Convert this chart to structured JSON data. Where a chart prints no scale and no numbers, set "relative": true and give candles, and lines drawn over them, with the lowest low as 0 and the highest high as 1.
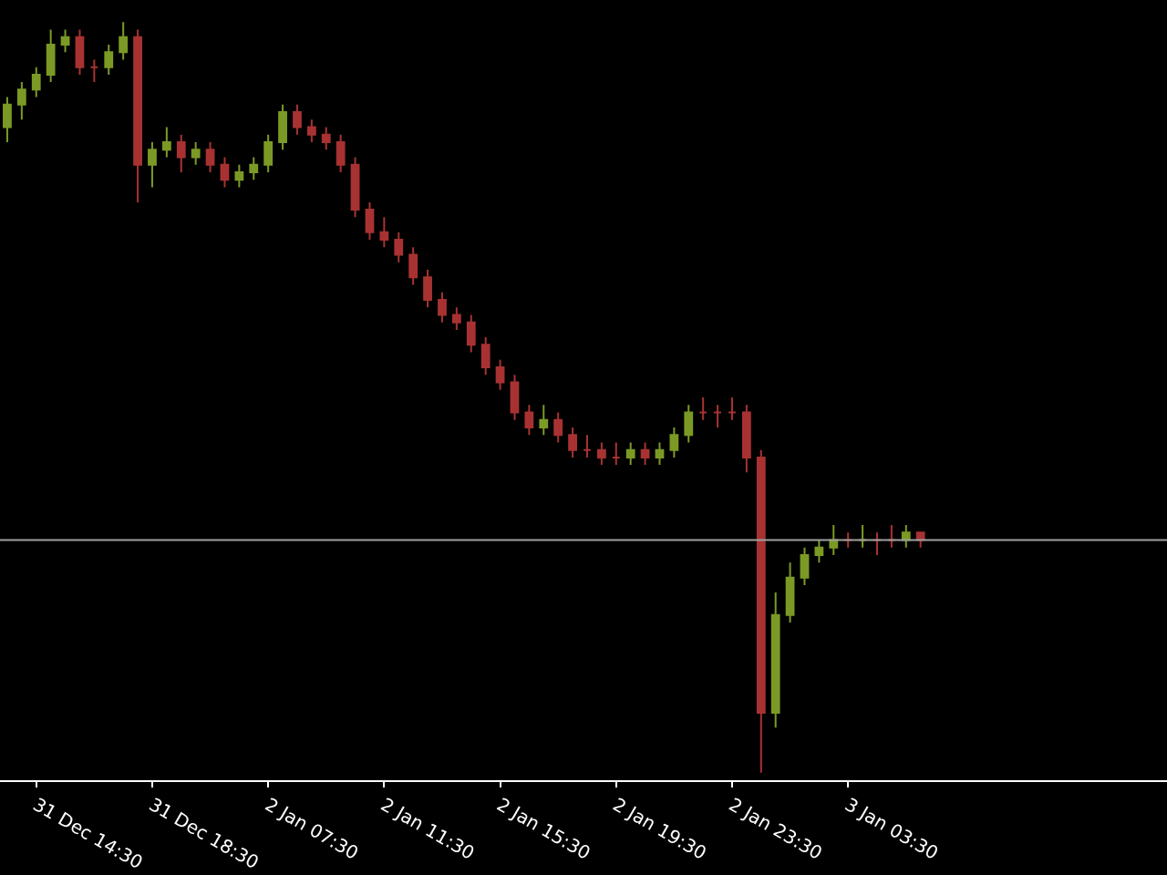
{
  "chart_data": {
    "type": "candlestick",
    "relative": true,
    "grid": false,
    "categories": [
      null,
      null,
      "31 Dec 14:30",
      null,
      null,
      null,
      null,
      null,
      null,
      null,
      "31 Dec 18:30",
      null,
      null,
      null,
      null,
      null,
      null,
      null,
      "2 Jan 07:30",
      null,
      null,
      null,
      null,
      null,
      null,
      null,
      "2 Jan 11:30",
      null,
      null,
      null,
      null,
      null,
      null,
      null,
      "2 Jan 15:30",
      null,
      null,
      null,
      null,
      null,
      null,
      null,
      "2 Jan 19:30",
      null,
      null,
      null,
      null,
      null,
      null,
      null,
      "2 Jan 23:30",
      null,
      null,
      null,
      null,
      null,
      null,
      null,
      "3 Jan 03:30",
      null,
      null,
      null,
      null,
      null
    ],
    "ohlc": [
      [
        0.86,
        0.9,
        0.84,
        0.89
      ],
      [
        0.89,
        0.92,
        0.87,
        0.91
      ],
      [
        0.91,
        0.94,
        0.9,
        0.93
      ],
      [
        0.93,
        0.99,
        0.92,
        0.97
      ],
      [
        0.97,
        0.99,
        0.96,
        0.98
      ],
      [
        0.98,
        0.99,
        0.93,
        0.94
      ],
      [
        0.94,
        0.95,
        0.92,
        0.94
      ],
      [
        0.94,
        0.97,
        0.93,
        0.96
      ],
      [
        0.96,
        1.0,
        0.95,
        0.98
      ],
      [
        0.98,
        0.99,
        0.76,
        0.81
      ],
      [
        0.81,
        0.84,
        0.78,
        0.83
      ],
      [
        0.83,
        0.86,
        0.82,
        0.84
      ],
      [
        0.84,
        0.85,
        0.8,
        0.82
      ],
      [
        0.82,
        0.84,
        0.81,
        0.83
      ],
      [
        0.83,
        0.84,
        0.8,
        0.81
      ],
      [
        0.81,
        0.82,
        0.78,
        0.79
      ],
      [
        0.79,
        0.81,
        0.78,
        0.8
      ],
      [
        0.8,
        0.82,
        0.79,
        0.81
      ],
      [
        0.81,
        0.85,
        0.8,
        0.84
      ],
      [
        0.84,
        0.89,
        0.83,
        0.88
      ],
      [
        0.88,
        0.89,
        0.85,
        0.86
      ],
      [
        0.86,
        0.87,
        0.84,
        0.85
      ],
      [
        0.85,
        0.86,
        0.83,
        0.84
      ],
      [
        0.84,
        0.85,
        0.8,
        0.81
      ],
      [
        0.81,
        0.82,
        0.74,
        0.75
      ],
      [
        0.75,
        0.76,
        0.71,
        0.72
      ],
      [
        0.72,
        0.74,
        0.7,
        0.71
      ],
      [
        0.71,
        0.72,
        0.68,
        0.69
      ],
      [
        0.69,
        0.7,
        0.65,
        0.66
      ],
      [
        0.66,
        0.67,
        0.62,
        0.63
      ],
      [
        0.63,
        0.64,
        0.6,
        0.61
      ],
      [
        0.61,
        0.62,
        0.59,
        0.6
      ],
      [
        0.6,
        0.61,
        0.56,
        0.57
      ],
      [
        0.57,
        0.58,
        0.53,
        0.54
      ],
      [
        0.54,
        0.55,
        0.51,
        0.52
      ],
      [
        0.52,
        0.53,
        0.47,
        0.48
      ],
      [
        0.48,
        0.49,
        0.45,
        0.46
      ],
      [
        0.46,
        0.49,
        0.45,
        0.47
      ],
      [
        0.47,
        0.48,
        0.44,
        0.45
      ],
      [
        0.45,
        0.46,
        0.42,
        0.43
      ],
      [
        0.43,
        0.45,
        0.42,
        0.43
      ],
      [
        0.43,
        0.44,
        0.41,
        0.42
      ],
      [
        0.42,
        0.44,
        0.41,
        0.42
      ],
      [
        0.42,
        0.44,
        0.41,
        0.43
      ],
      [
        0.43,
        0.44,
        0.41,
        0.42
      ],
      [
        0.42,
        0.44,
        0.41,
        0.43
      ],
      [
        0.43,
        0.46,
        0.42,
        0.45
      ],
      [
        0.45,
        0.49,
        0.44,
        0.48
      ],
      [
        0.48,
        0.5,
        0.47,
        0.48
      ],
      [
        0.48,
        0.49,
        0.46,
        0.48
      ],
      [
        0.48,
        0.5,
        0.47,
        0.48
      ],
      [
        0.48,
        0.49,
        0.4,
        0.42
      ],
      [
        0.42,
        0.43,
        0.0,
        0.08
      ],
      [
        0.08,
        0.24,
        0.06,
        0.21
      ],
      [
        0.21,
        0.28,
        0.2,
        0.26
      ],
      [
        0.26,
        0.3,
        0.25,
        0.29
      ],
      [
        0.29,
        0.31,
        0.28,
        0.3
      ],
      [
        0.3,
        0.33,
        0.29,
        0.31
      ],
      [
        0.31,
        0.32,
        0.3,
        0.31
      ],
      [
        0.31,
        0.33,
        0.3,
        0.31
      ],
      [
        0.31,
        0.32,
        0.29,
        0.31
      ],
      [
        0.31,
        0.33,
        0.3,
        0.31
      ],
      [
        0.31,
        0.33,
        0.3,
        0.32
      ],
      [
        0.32,
        0.32,
        0.3,
        0.31
      ]
    ],
    "colors": [
      "#7b9a25",
      "#7b9a25",
      "#7b9a25",
      "#7b9a25",
      "#7b9a25",
      "#a83232",
      "#a83232",
      "#7b9a25",
      "#7b9a25",
      "#a83232",
      "#7b9a25",
      "#7b9a25",
      "#a83232",
      "#7b9a25",
      "#a83232",
      "#a83232",
      "#7b9a25",
      "#7b9a25",
      "#7b9a25",
      "#7b9a25",
      "#a83232",
      "#a83232",
      "#a83232",
      "#a83232",
      "#a83232",
      "#a83232",
      "#a83232",
      "#a83232",
      "#a83232",
      "#a83232",
      "#a83232",
      "#a83232",
      "#a83232",
      "#a83232",
      "#a83232",
      "#a83232",
      "#a83232",
      "#7b9a25",
      "#a83232",
      "#a83232",
      "#a83232",
      "#a83232",
      "#a83232",
      "#7b9a25",
      "#a83232",
      "#7b9a25",
      "#7b9a25",
      "#7b9a25",
      "#a83232",
      "#a83232",
      "#a83232",
      "#a83232",
      "#a83232",
      "#7b9a25",
      "#7b9a25",
      "#7b9a25",
      "#7b9a25",
      "#7b9a25",
      "#a83232",
      "#7b9a25",
      "#a83232",
      "#a83232",
      "#7b9a25",
      "#a83232"
    ],
    "ref_lines": [
      {
        "axis": "y",
        "value": 0.31,
        "color": "#a0a0a0"
      }
    ]
  }
}
